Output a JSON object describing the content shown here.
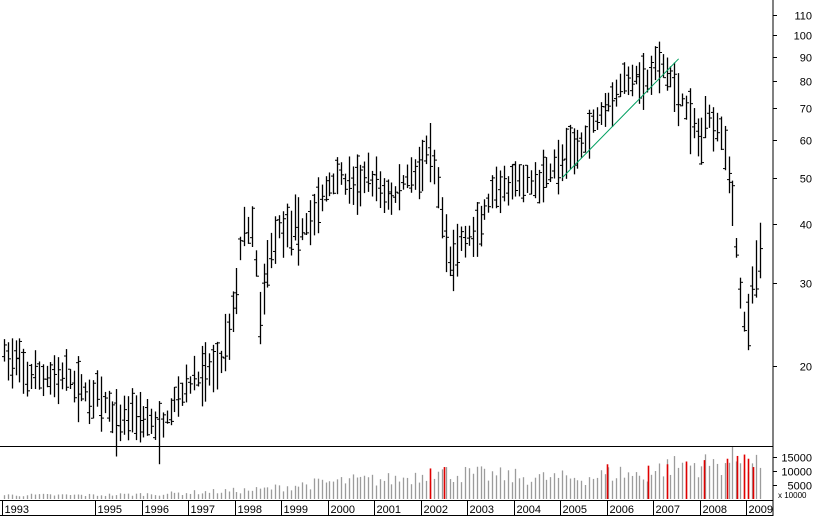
{
  "chart_data": {
    "type": "ohlc",
    "scale": "log",
    "grid": false,
    "ylim": [
      14,
      115
    ],
    "y_ticks": [
      20,
      30,
      40,
      50,
      60,
      70,
      80,
      90,
      100,
      110
    ],
    "x_start": 1993.0,
    "x_end": 2009.3,
    "x_ticks": [
      {
        "label": "1993",
        "x": 1993.0
      },
      {
        "label": "1995",
        "x": 1995.0
      },
      {
        "label": "1996",
        "x": 1996.0
      },
      {
        "label": "1997",
        "x": 1997.0
      },
      {
        "label": "1998",
        "x": 1998.0
      },
      {
        "label": "1999",
        "x": 1999.0
      },
      {
        "label": "2000",
        "x": 2000.0
      },
      {
        "label": "2001",
        "x": 2001.0
      },
      {
        "label": "2002",
        "x": 2002.0
      },
      {
        "label": "2003",
        "x": 2003.0
      },
      {
        "label": "2004",
        "x": 2004.0
      },
      {
        "label": "2005",
        "x": 2005.0
      },
      {
        "label": "2006",
        "x": 2006.0
      },
      {
        "label": "2007",
        "x": 2007.0
      },
      {
        "label": "2008",
        "x": 2008.0
      },
      {
        "label": "2009",
        "x": 2009.0
      }
    ],
    "price_anchors": [
      [
        1993.0,
        21.5
      ],
      [
        1993.6,
        19
      ],
      [
        1994.4,
        19
      ],
      [
        1994.8,
        17.5
      ],
      [
        1995.0,
        17.5
      ],
      [
        1995.5,
        15.2
      ],
      [
        1995.8,
        16.3
      ],
      [
        1996.1,
        15.5
      ],
      [
        1996.4,
        14.6
      ],
      [
        1996.8,
        17.5
      ],
      [
        1997.2,
        19
      ],
      [
        1997.7,
        20.5
      ],
      [
        1998.0,
        27
      ],
      [
        1998.2,
        40
      ],
      [
        1998.4,
        38
      ],
      [
        1998.55,
        25
      ],
      [
        1998.75,
        35
      ],
      [
        1999.0,
        40
      ],
      [
        1999.5,
        39
      ],
      [
        1999.8,
        44
      ],
      [
        2000.2,
        51
      ],
      [
        2000.5,
        48
      ],
      [
        2000.8,
        50
      ],
      [
        2001.1,
        48
      ],
      [
        2001.4,
        45
      ],
      [
        2001.7,
        50
      ],
      [
        2002.0,
        53
      ],
      [
        2002.2,
        57
      ],
      [
        2002.6,
        33
      ],
      [
        2002.9,
        37
      ],
      [
        2003.2,
        38
      ],
      [
        2003.5,
        45
      ],
      [
        2003.8,
        47
      ],
      [
        2004.1,
        49
      ],
      [
        2004.5,
        49
      ],
      [
        2004.8,
        52
      ],
      [
        2005.1,
        55
      ],
      [
        2005.5,
        60
      ],
      [
        2005.9,
        70
      ],
      [
        2006.3,
        78
      ],
      [
        2006.6,
        82
      ],
      [
        2006.9,
        80
      ],
      [
        2007.1,
        87
      ],
      [
        2007.4,
        80
      ],
      [
        2007.6,
        74
      ],
      [
        2007.8,
        66
      ],
      [
        2008.0,
        60
      ],
      [
        2008.2,
        68
      ],
      [
        2008.5,
        63
      ],
      [
        2008.7,
        45
      ],
      [
        2008.85,
        30
      ],
      [
        2009.0,
        23
      ],
      [
        2009.15,
        30
      ],
      [
        2009.25,
        35
      ]
    ],
    "trendline": {
      "x": [
        2005.05,
        2007.55
      ],
      "y": [
        50,
        89
      ]
    },
    "volume": {
      "ylim": [
        0,
        18000
      ],
      "ticks": [
        5000,
        10000,
        15000
      ],
      "unit_label": "x 10000",
      "tick_labels": [
        "5000",
        "10000",
        "15000"
      ],
      "anchors": [
        [
          1993.0,
          1500
        ],
        [
          1995.0,
          1500
        ],
        [
          1996.5,
          2000
        ],
        [
          1997.5,
          2800
        ],
        [
          1998.5,
          3500
        ],
        [
          1999.5,
          5500
        ],
        [
          2000.5,
          7000
        ],
        [
          2001.5,
          7500
        ],
        [
          2002.2,
          10000
        ],
        [
          2002.8,
          9500
        ],
        [
          2003.5,
          9000
        ],
        [
          2004.5,
          8000
        ],
        [
          2005.5,
          8000
        ],
        [
          2006.3,
          10000
        ],
        [
          2006.8,
          8500
        ],
        [
          2007.2,
          12000
        ],
        [
          2007.7,
          13000
        ],
        [
          2008.3,
          13000
        ],
        [
          2008.8,
          15000
        ],
        [
          2009.2,
          14000
        ]
      ],
      "highlights": [
        [
          2002.2,
          11000
        ],
        [
          2002.5,
          11500
        ],
        [
          2006.0,
          12500
        ],
        [
          2006.9,
          12000
        ],
        [
          2007.3,
          12500
        ],
        [
          2007.7,
          13500
        ],
        [
          2008.1,
          14000
        ],
        [
          2008.6,
          14500
        ],
        [
          2008.8,
          15500
        ],
        [
          2008.95,
          16000
        ],
        [
          2009.05,
          14500
        ],
        [
          2009.15,
          11500
        ]
      ]
    },
    "colors": {
      "bar": "#000000",
      "axis": "#000000",
      "volume": "#9c9c9c",
      "volume_highlight": "#e00000",
      "trendline": "#00a060",
      "background": "#ffffff"
    }
  }
}
